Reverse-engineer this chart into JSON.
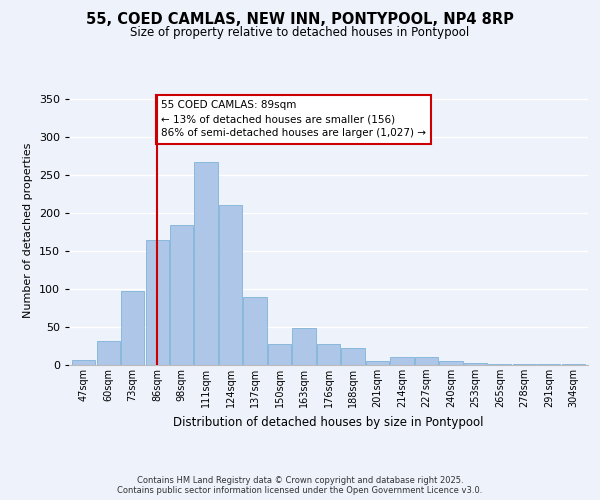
{
  "title": "55, COED CAMLAS, NEW INN, PONTYPOOL, NP4 8RP",
  "subtitle": "Size of property relative to detached houses in Pontypool",
  "xlabel": "Distribution of detached houses by size in Pontypool",
  "ylabel": "Number of detached properties",
  "bar_labels": [
    "47sqm",
    "60sqm",
    "73sqm",
    "86sqm",
    "98sqm",
    "111sqm",
    "124sqm",
    "137sqm",
    "150sqm",
    "163sqm",
    "176sqm",
    "188sqm",
    "201sqm",
    "214sqm",
    "227sqm",
    "240sqm",
    "253sqm",
    "265sqm",
    "278sqm",
    "291sqm",
    "304sqm"
  ],
  "bar_heights": [
    6,
    32,
    97,
    164,
    184,
    267,
    210,
    89,
    27,
    48,
    27,
    22,
    5,
    10,
    10,
    5,
    2,
    1,
    1,
    1,
    1
  ],
  "bar_color": "#aec6e8",
  "bar_edge_color": "#7fb3d9",
  "vline_x": 3,
  "vline_color": "#cc0000",
  "annotation_title": "55 COED CAMLAS: 89sqm",
  "annotation_line1": "← 13% of detached houses are smaller (156)",
  "annotation_line2": "86% of semi-detached houses are larger (1,027) →",
  "annotation_box_color": "#ffffff",
  "annotation_box_edge": "#cc0000",
  "ylim": [
    0,
    355
  ],
  "yticks": [
    0,
    50,
    100,
    150,
    200,
    250,
    300,
    350
  ],
  "background_color": "#eef2fb",
  "footer1": "Contains HM Land Registry data © Crown copyright and database right 2025.",
  "footer2": "Contains public sector information licensed under the Open Government Licence v3.0."
}
